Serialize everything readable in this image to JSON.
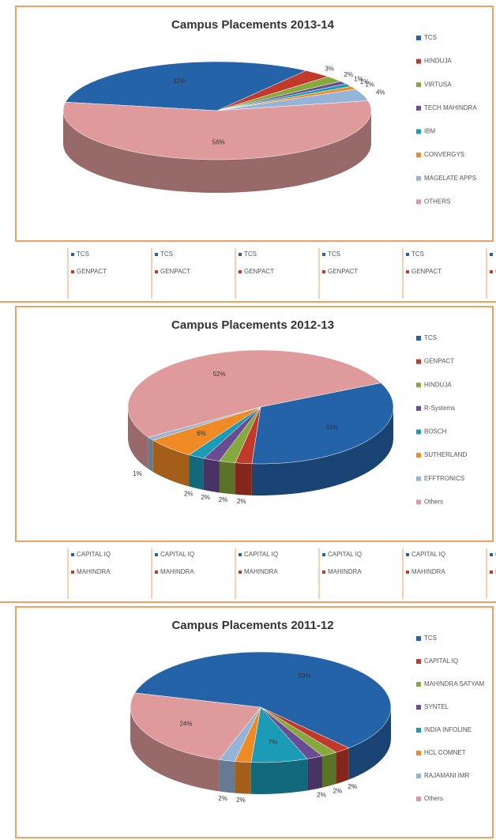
{
  "chart_data": [
    {
      "type": "pie",
      "title": "Campus Placements 2013-14",
      "categories": [
        "TCS",
        "HINDUJA",
        "VIRTUSA",
        "TECH MAHINDRA",
        "IBM",
        "CONVERGYS",
        "MAGELATE APPS",
        "OTHERS"
      ],
      "values": [
        32,
        3,
        2,
        1,
        1,
        1,
        4,
        56
      ],
      "value_labels": [
        "32%",
        "3%",
        "2%",
        "1%",
        "1%",
        "1%",
        "4%",
        "56%"
      ],
      "colors": [
        "#2563a8",
        "#c0392b",
        "#86a83c",
        "#6a4c93",
        "#1b9bb5",
        "#ef8a25",
        "#96b4d8",
        "#df9b9b"
      ]
    },
    {
      "type": "pie",
      "title": "Campus Placements 2012-13",
      "categories": [
        "TCS",
        "GENPACT",
        "HINDUJA",
        "R-Systems",
        "BOSCH",
        "SUTHERLAND",
        "EFFTRONICS",
        "Others"
      ],
      "values": [
        33,
        2,
        2,
        2,
        2,
        6,
        1,
        52
      ],
      "value_labels": [
        "33%",
        "2%",
        "2%",
        "2%",
        "2%",
        "6%",
        "1%",
        "52%"
      ],
      "colors": [
        "#2563a8",
        "#c0392b",
        "#86a83c",
        "#6a4c93",
        "#1b9bb5",
        "#ef8a25",
        "#96b4d8",
        "#df9b9b"
      ]
    },
    {
      "type": "pie",
      "title": "Campus Placements 2011-12",
      "categories": [
        "TCS",
        "CAPITAL IQ",
        "MAHINDRA SATYAM",
        "SYNTEL",
        "INDIA INFOLINE",
        "HCL COMNET",
        "RAJAMANI IMR",
        "Others"
      ],
      "values": [
        59,
        2,
        2,
        2,
        7,
        2,
        2,
        24
      ],
      "value_labels": [
        "59%",
        "2%",
        "2%",
        "2%",
        "7%",
        "2%",
        "2%",
        "24%"
      ],
      "colors": [
        "#2563a8",
        "#c0392b",
        "#86a83c",
        "#6a4c93",
        "#1b9bb5",
        "#ef8a25",
        "#96b4d8",
        "#df9b9b"
      ]
    }
  ],
  "strips": [
    [
      "TCS",
      "GENPACT"
    ],
    [
      "CAPITAL IQ",
      "MAHINDRA"
    ]
  ]
}
